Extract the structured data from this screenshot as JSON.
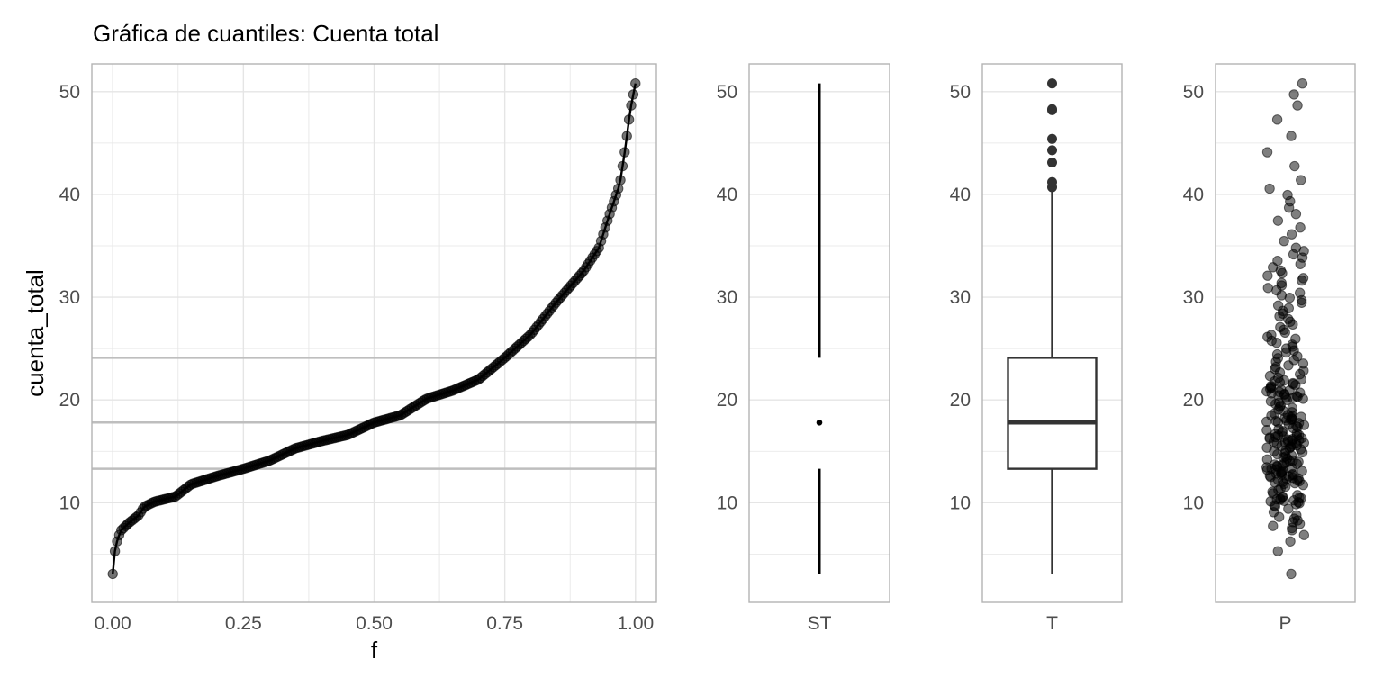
{
  "colors": {
    "panel_border": "#b3b3b3",
    "grid": "#e5e5e5",
    "ref_line": "#bebebe",
    "points": "#000000",
    "box": "#333333"
  },
  "chart_data": [
    {
      "type": "line",
      "title": "Gráfica de cuantiles: Cuenta total",
      "xlabel": "f",
      "ylabel": "cuenta_total",
      "xlim": [
        -0.04,
        1.04
      ],
      "ylim": [
        0.3,
        52.7
      ],
      "x_ticks": [
        0,
        0.25,
        0.5,
        0.75,
        1
      ],
      "x_tick_labels": [
        "0.00",
        "0.25",
        "0.50",
        "0.75",
        "1.00"
      ],
      "y_ticks": [
        10,
        20,
        30,
        40,
        50
      ],
      "y_tick_labels": [
        "10",
        "20",
        "30",
        "40",
        "50"
      ],
      "reference_lines": [
        13.3,
        17.8,
        24.1
      ],
      "n_points": 244,
      "quantile_knots": {
        "f": [
          0.0,
          0.005,
          0.015,
          0.03,
          0.05,
          0.06,
          0.08,
          0.12,
          0.15,
          0.2,
          0.25,
          0.3,
          0.35,
          0.4,
          0.45,
          0.5,
          0.55,
          0.6,
          0.65,
          0.7,
          0.75,
          0.8,
          0.85,
          0.9,
          0.93,
          0.95,
          0.97,
          0.98,
          0.99,
          1.0
        ],
        "cuenta_total": [
          3.07,
          5.75,
          7.25,
          8.0,
          8.8,
          9.6,
          10.1,
          10.6,
          11.8,
          12.6,
          13.3,
          14.1,
          15.3,
          16.0,
          16.6,
          17.8,
          18.5,
          20.1,
          20.9,
          22.0,
          24.1,
          26.4,
          29.6,
          32.5,
          34.8,
          38.0,
          41.0,
          44.3,
          48.2,
          50.8
        ]
      }
    },
    {
      "type": "tufte-boxplot",
      "category": "ST",
      "ylim": [
        0.3,
        52.7
      ],
      "y_ticks": [
        10,
        20,
        30,
        40,
        50
      ],
      "y_tick_labels": [
        "10",
        "20",
        "30",
        "40",
        "50"
      ],
      "min": 3.07,
      "q1": 13.3,
      "median": 17.8,
      "q3": 24.1,
      "max": 50.8
    },
    {
      "type": "boxplot",
      "category": "T",
      "ylim": [
        0.3,
        52.7
      ],
      "y_ticks": [
        10,
        20,
        30,
        40,
        50
      ],
      "y_tick_labels": [
        "10",
        "20",
        "30",
        "40",
        "50"
      ],
      "whisker_low": 3.07,
      "q1": 13.3,
      "median": 17.8,
      "q3": 24.1,
      "whisker_high": 40.5,
      "outliers": [
        40.7,
        41.2,
        43.1,
        44.3,
        45.4,
        48.2,
        48.3,
        50.8
      ]
    },
    {
      "type": "scatter",
      "category": "P",
      "description": "jittered strip of all cuenta_total values",
      "ylim": [
        0.3,
        52.7
      ],
      "y_ticks": [
        10,
        20,
        30,
        40,
        50
      ],
      "y_tick_labels": [
        "10",
        "20",
        "30",
        "40",
        "50"
      ]
    }
  ]
}
